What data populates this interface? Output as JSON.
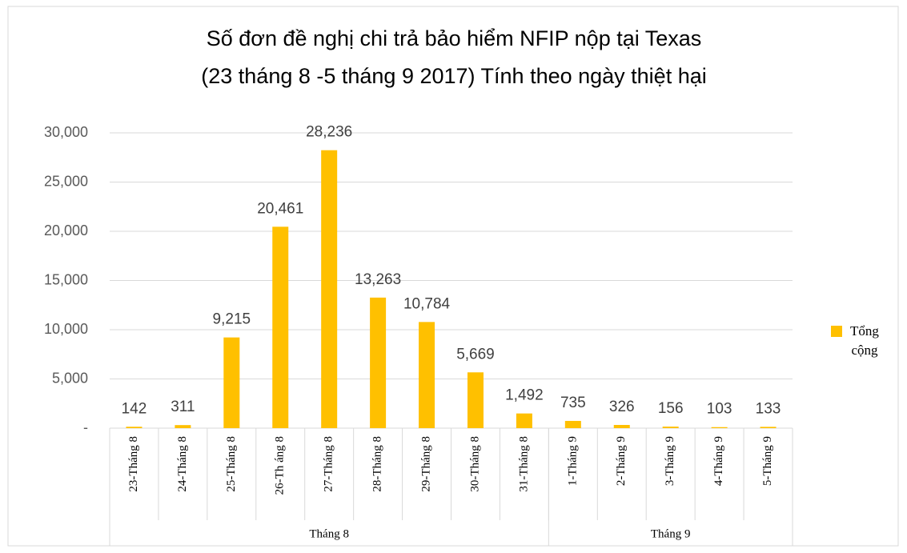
{
  "chart_data": {
    "type": "bar",
    "title": "Số đơn đề nghị chi trả bảo hiểm NFIP nộp tại Texas",
    "subtitle": "(23 tháng 8 -5 tháng 9 2017) Tính theo ngày thiệt hại",
    "categories": [
      "23-Tháng 8",
      "24-Tháng 8",
      "25-Tháng 8",
      "26-Th áng 8",
      "27-Tháng 8",
      "28-Tháng 8",
      "29-Tháng 8",
      "30-Tháng 8",
      "31-Tháng 8",
      "1-Tháng 9",
      "2-Tháng 9",
      "3-Tháng 9",
      "4-Tháng 9",
      "5-Tháng 9"
    ],
    "groups": [
      {
        "label": "Tháng 8",
        "size": 9
      },
      {
        "label": "Tháng 9",
        "size": 5
      }
    ],
    "series": [
      {
        "name": "Tổng cộng",
        "color": "#FFC000",
        "values": [
          142,
          311,
          9215,
          20461,
          28236,
          13263,
          10784,
          5669,
          1492,
          735,
          326,
          156,
          103,
          133
        ],
        "value_labels": [
          "142",
          "311",
          "9,215",
          "20,461",
          "28,236",
          "13,263",
          "10,784",
          "5,669",
          "1,492",
          "735",
          "326",
          "156",
          "103",
          "133"
        ]
      }
    ],
    "ylim": [
      0,
      30000
    ],
    "yticks": [
      {
        "value": 0,
        "label": "-"
      },
      {
        "value": 5000,
        "label": "5,000"
      },
      {
        "value": 10000,
        "label": "10,000"
      },
      {
        "value": 15000,
        "label": "15,000"
      },
      {
        "value": 20000,
        "label": "20,000"
      },
      {
        "value": 25000,
        "label": "25,000"
      },
      {
        "value": 30000,
        "label": "30,000"
      }
    ],
    "grid": true,
    "legend": "right"
  }
}
